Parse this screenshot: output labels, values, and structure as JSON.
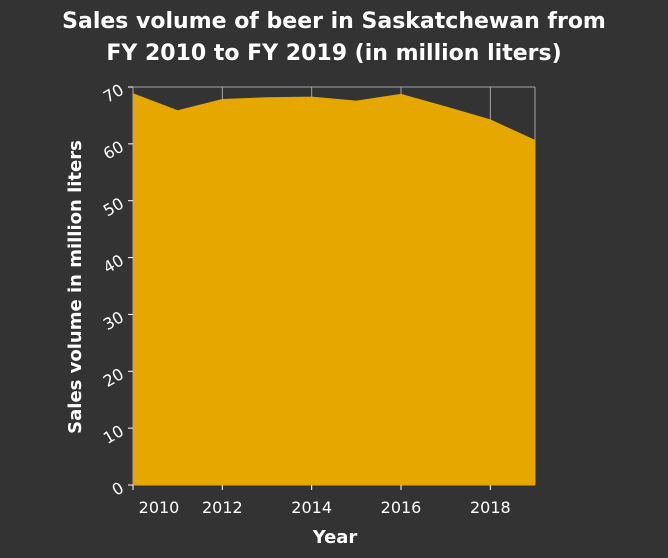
{
  "chart_data": {
    "type": "area",
    "title": "Sales volume of beer in Saskatchewan from FY 2010 to FY 2019 (in million liters)",
    "title_lines": [
      "Sales volume of beer in Saskatchewan from",
      "FY 2010 to FY 2019 (in million liters)"
    ],
    "xlabel": "Year",
    "ylabel": "Sales volume in million liters",
    "x": [
      2010,
      2011,
      2012,
      2013,
      2014,
      2015,
      2016,
      2017,
      2018,
      2019
    ],
    "values": [
      68.9,
      65.9,
      67.9,
      68.2,
      68.3,
      67.6,
      68.8,
      66.6,
      64.3,
      60.7
    ],
    "xlim": [
      2010,
      2019
    ],
    "ylim": [
      0,
      70
    ],
    "xticks": [
      "2010",
      "2012",
      "2014",
      "2016",
      "2018"
    ],
    "yticks": [
      "0",
      "10",
      "20",
      "30",
      "40",
      "50",
      "60",
      "70"
    ],
    "grid": true,
    "fill_color": "#e6a800",
    "background_color": "#333333",
    "grid_color": "#a6a6a6"
  }
}
